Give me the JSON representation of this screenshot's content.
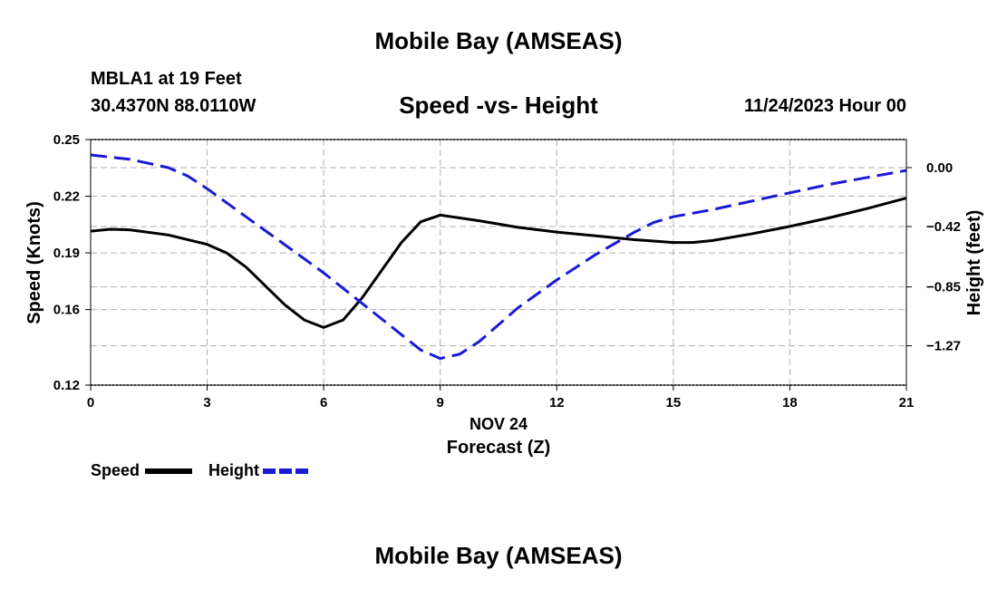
{
  "header": {
    "title": "Mobile Bay (AMSEAS)",
    "station": "MBLA1 at 19 Feet",
    "coords": "30.4370N  88.0110W",
    "subtitle": "Speed -vs- Height",
    "run_date": "11/24/2023 Hour 00"
  },
  "footer": {
    "title": "Mobile Bay (AMSEAS)"
  },
  "legend": {
    "speed_label": "Speed",
    "height_label": "Height"
  },
  "colors": {
    "speed": "#000000",
    "height": "#1a1ad6",
    "grid": "#b0b0b0"
  },
  "chart_data": {
    "type": "line",
    "title": "Speed -vs- Height",
    "xlabel_date": "NOV 24",
    "xlabel": "Forecast (Z)",
    "ylabel_left": "Speed (Knots)",
    "ylabel_right": "Height (feet)",
    "xlim": [
      0,
      21
    ],
    "ylim_left": [
      0.12,
      0.25
    ],
    "ylim_right": [
      -1.55,
      0.2
    ],
    "x_ticks": [
      0,
      3,
      6,
      9,
      12,
      15,
      18,
      21
    ],
    "x_tick_labels": [
      "0",
      "3",
      "6",
      "9",
      "12",
      "15",
      "18",
      "21"
    ],
    "y_left_ticks": [
      0.12,
      0.16,
      0.19,
      0.22,
      0.25
    ],
    "y_left_tick_labels": [
      "0.12",
      "0.16",
      "0.19",
      "0.22",
      "0.25"
    ],
    "y_right_ticks": [
      0.0,
      -0.42,
      -0.85,
      -1.27
    ],
    "y_right_tick_labels": [
      "0.00",
      "−0.42",
      "−0.85",
      "−1.27"
    ],
    "grid": true,
    "legend_position": "bottom-left",
    "series": [
      {
        "name": "Speed",
        "axis": "left",
        "style": "solid",
        "x": [
          0,
          0.5,
          1,
          2,
          3,
          3.5,
          4,
          5,
          5.5,
          6,
          6.5,
          7,
          8,
          8.5,
          9,
          10,
          11,
          12,
          13,
          14,
          15,
          15.5,
          16,
          17,
          18,
          19,
          20,
          21
        ],
        "values": [
          0.2015,
          0.2025,
          0.2022,
          0.1995,
          0.1945,
          0.19,
          0.1825,
          0.1625,
          0.1545,
          0.1505,
          0.1545,
          0.1665,
          0.1955,
          0.2065,
          0.21,
          0.207,
          0.2035,
          0.201,
          0.199,
          0.197,
          0.1955,
          0.1955,
          0.1965,
          0.2,
          0.204,
          0.2085,
          0.2135,
          0.219
        ]
      },
      {
        "name": "Height",
        "axis": "right",
        "style": "dashed",
        "x": [
          0,
          1,
          2,
          2.5,
          3,
          4,
          5,
          6,
          7,
          8,
          8.5,
          9,
          9.5,
          10,
          11,
          12,
          13,
          14,
          14.5,
          15,
          16,
          17,
          18,
          19,
          20,
          21
        ],
        "values": [
          0.09,
          0.06,
          0.0,
          -0.06,
          -0.15,
          -0.35,
          -0.55,
          -0.75,
          -0.97,
          -1.19,
          -1.3,
          -1.36,
          -1.33,
          -1.24,
          -1.0,
          -0.8,
          -0.62,
          -0.46,
          -0.39,
          -0.35,
          -0.3,
          -0.24,
          -0.18,
          -0.12,
          -0.07,
          -0.02
        ]
      }
    ]
  }
}
